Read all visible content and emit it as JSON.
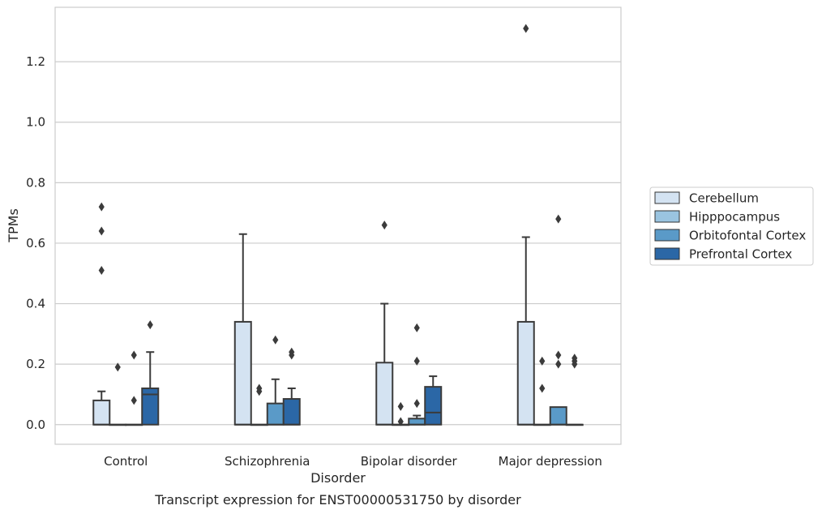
{
  "chart_data": {
    "type": "boxplot",
    "caption": "Transcript expression for ENST00000531750 by disorder",
    "xlabel": "Disorder",
    "ylabel": "TPMs",
    "ylim": [
      -0.065,
      1.38
    ],
    "yticks": [
      "0.0",
      "0.2",
      "0.4",
      "0.6",
      "0.8",
      "1.0",
      "1.2"
    ],
    "grid": "horizontal",
    "legend_position": "right",
    "categories": [
      "Control",
      "Schizophrenia",
      "Bipolar disorder",
      "Major depression"
    ],
    "series": [
      {
        "name": "Cerebellum",
        "color": "#d4e3f2",
        "boxes": [
          {
            "q1": 0.0,
            "median": 0.0,
            "q3": 0.08,
            "whisker_low": 0.0,
            "whisker_high": 0.11,
            "outliers": [
              0.51,
              0.64,
              0.72
            ]
          },
          {
            "q1": 0.0,
            "median": 0.0,
            "q3": 0.34,
            "whisker_low": 0.0,
            "whisker_high": 0.63,
            "outliers": []
          },
          {
            "q1": 0.0,
            "median": 0.0,
            "q3": 0.205,
            "whisker_low": 0.0,
            "whisker_high": 0.4,
            "outliers": [
              0.66
            ]
          },
          {
            "q1": 0.0,
            "median": 0.0,
            "q3": 0.34,
            "whisker_low": 0.0,
            "whisker_high": 0.62,
            "outliers": [
              1.31
            ]
          }
        ]
      },
      {
        "name": "Hipppocampus",
        "color": "#9ac4e0",
        "boxes": [
          {
            "q1": 0.0,
            "median": 0.0,
            "q3": 0.0,
            "whisker_low": 0.0,
            "whisker_high": 0.0,
            "outliers": [
              0.19
            ]
          },
          {
            "q1": 0.0,
            "median": 0.0,
            "q3": 0.0,
            "whisker_low": 0.0,
            "whisker_high": 0.0,
            "outliers": [
              0.11,
              0.12
            ]
          },
          {
            "q1": 0.0,
            "median": 0.0,
            "q3": 0.0,
            "whisker_low": 0.0,
            "whisker_high": 0.0,
            "outliers": [
              0.01,
              0.06
            ]
          },
          {
            "q1": 0.0,
            "median": 0.0,
            "q3": 0.0,
            "whisker_low": 0.0,
            "whisker_high": 0.0,
            "outliers": [
              0.12,
              0.21
            ]
          }
        ]
      },
      {
        "name": "Orbitofontal Cortex",
        "color": "#5a9ac8",
        "boxes": [
          {
            "q1": 0.0,
            "median": 0.0,
            "q3": 0.0,
            "whisker_low": 0.0,
            "whisker_high": 0.0,
            "outliers": [
              0.08,
              0.23
            ]
          },
          {
            "q1": 0.0,
            "median": 0.0,
            "q3": 0.07,
            "whisker_low": 0.0,
            "whisker_high": 0.15,
            "outliers": [
              0.28
            ]
          },
          {
            "q1": 0.0,
            "median": 0.0,
            "q3": 0.02,
            "whisker_low": 0.0,
            "whisker_high": 0.03,
            "outliers": [
              0.07,
              0.21,
              0.32
            ]
          },
          {
            "q1": 0.0,
            "median": 0.0,
            "q3": 0.058,
            "whisker_low": 0.0,
            "whisker_high": 0.058,
            "outliers": [
              0.2,
              0.23,
              0.68
            ]
          }
        ]
      },
      {
        "name": "Prefrontal Cortex",
        "color": "#2b67a6",
        "boxes": [
          {
            "q1": 0.0,
            "median": 0.1,
            "q3": 0.12,
            "whisker_low": 0.0,
            "whisker_high": 0.24,
            "outliers": [
              0.33
            ]
          },
          {
            "q1": 0.0,
            "median": 0.0,
            "q3": 0.085,
            "whisker_low": 0.0,
            "whisker_high": 0.12,
            "outliers": [
              0.23,
              0.24
            ]
          },
          {
            "q1": 0.0,
            "median": 0.04,
            "q3": 0.125,
            "whisker_low": 0.0,
            "whisker_high": 0.16,
            "outliers": []
          },
          {
            "q1": 0.0,
            "median": 0.0,
            "q3": 0.0,
            "whisker_low": 0.0,
            "whisker_high": 0.0,
            "outliers": [
              0.2,
              0.21,
              0.22
            ]
          }
        ]
      }
    ]
  }
}
